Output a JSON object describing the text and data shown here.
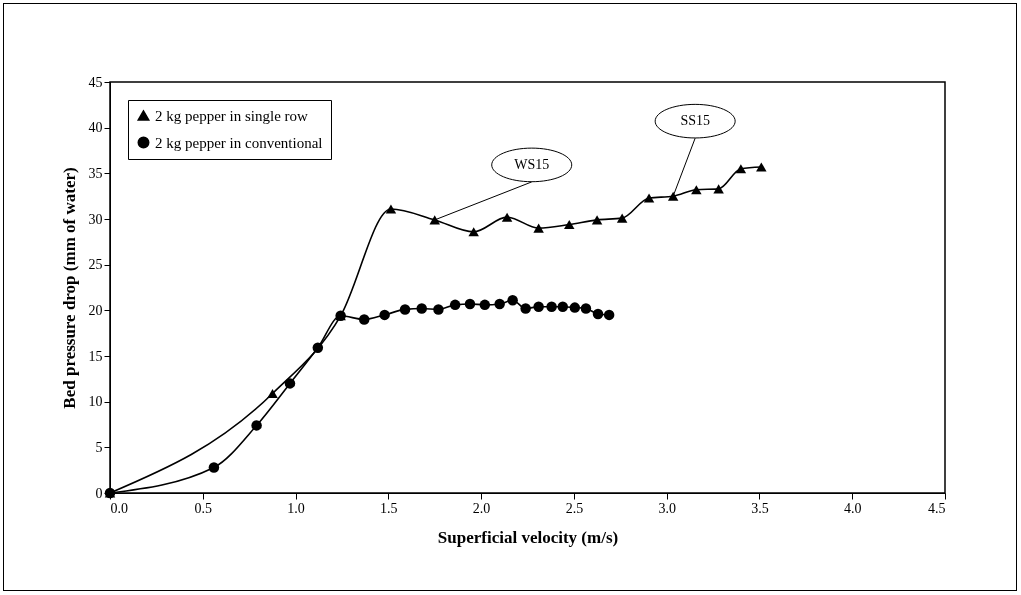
{
  "chart_data": {
    "type": "line",
    "xlabel": "Superficial velocity (m/s)",
    "ylabel": "Bed pressure drop (mm of water)",
    "xlim": [
      0,
      4.5
    ],
    "ylim": [
      0,
      45
    ],
    "xticks": [
      {
        "value": 0,
        "label": "0.0"
      },
      {
        "value": 0.5,
        "label": "0.5"
      },
      {
        "value": 1,
        "label": "1.0"
      },
      {
        "value": 1.5,
        "label": "1.5"
      },
      {
        "value": 2,
        "label": "2.0"
      },
      {
        "value": 2.5,
        "label": "2.5"
      },
      {
        "value": 3,
        "label": "3.0"
      },
      {
        "value": 3.5,
        "label": "3.5"
      },
      {
        "value": 4,
        "label": "4.0"
      },
      {
        "value": 4.5,
        "label": "4.5"
      }
    ],
    "yticks": [
      0,
      5,
      10,
      15,
      20,
      25,
      30,
      35,
      40,
      45
    ],
    "legend": "top left",
    "grid": false,
    "series": [
      {
        "name": "2 kg pepper in single row",
        "color": "#000000",
        "marker": "triangle",
        "x": [
          0,
          0.876,
          1.243,
          1.514,
          1.75,
          1.96,
          2.14,
          2.31,
          2.475,
          2.625,
          2.76,
          2.905,
          3.035,
          3.16,
          3.28,
          3.4,
          3.51
        ],
        "values": [
          0,
          10.9,
          19.4,
          31.1,
          29.9,
          28.6,
          30.2,
          29.0,
          29.4,
          29.9,
          30.1,
          32.3,
          32.5,
          33.2,
          33.3,
          35.5,
          35.7
        ]
      },
      {
        "name": "2 kg pepper in conventional",
        "color": "#000000",
        "marker": "circle",
        "x": [
          0,
          0.56,
          0.79,
          0.97,
          1.12,
          1.243,
          1.37,
          1.48,
          1.59,
          1.68,
          1.77,
          1.86,
          1.94,
          2.02,
          2.1,
          2.17,
          2.24,
          2.31,
          2.38,
          2.44,
          2.505,
          2.565,
          2.63,
          2.69
        ],
        "values": [
          0,
          2.8,
          7.4,
          12.0,
          15.9,
          19.4,
          19.0,
          19.5,
          20.1,
          20.2,
          20.1,
          20.6,
          20.7,
          20.6,
          20.7,
          21.1,
          20.2,
          20.4,
          20.4,
          20.4,
          20.3,
          20.2,
          19.6,
          19.5
        ]
      }
    ],
    "annotations": [
      {
        "text": "WS15",
        "x": 1.75,
        "y": 29.9
      },
      {
        "text": "SS15",
        "x": 3.035,
        "y": 32.5
      }
    ]
  }
}
